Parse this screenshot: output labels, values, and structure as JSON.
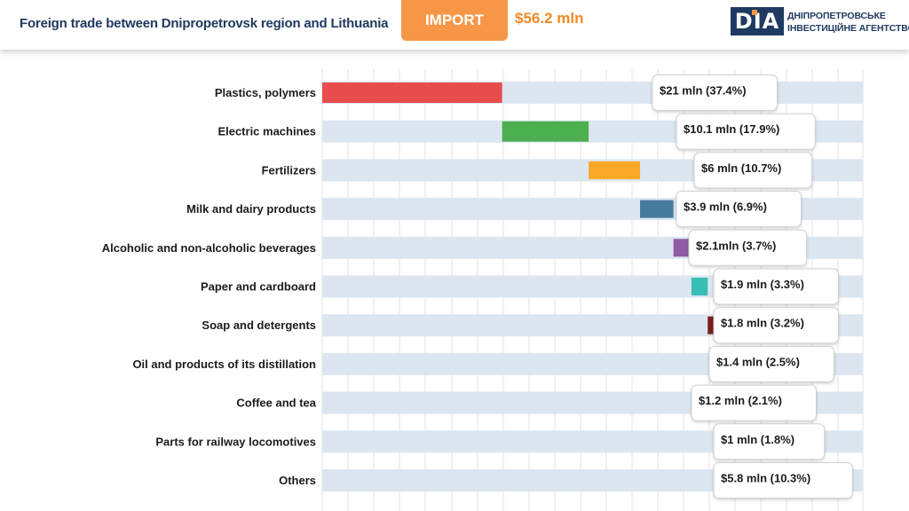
{
  "header": {
    "title": "Foreign trade between Dnipropetrovsk region and Lithuania",
    "tab_label": "IMPORT",
    "total": "$56.2 mln",
    "logo_mark": "DIA",
    "logo_line1": "ДНІПРОПЕТРОВСЬКЕ",
    "logo_line2": "ІНВЕСТИЦІЙНЕ АГЕНТСТВО"
  },
  "colors": {
    "accent_orange": "#f79646",
    "title_navy": "#1f3a60",
    "track": "#dce6f1"
  },
  "chart_data": {
    "type": "bar",
    "orientation": "horizontal",
    "style": "waterfall",
    "title": "",
    "xlabel": "",
    "ylabel": "",
    "unit": "$ mln",
    "total": 56.2,
    "categories": [
      "Plastics, polymers",
      "Electric machines",
      "Fertilizers",
      "Milk and dairy products",
      "Alcoholic and non-alcoholic beverages",
      "Paper and cardboard",
      "Soap and detergents",
      "Oil and products of its distillation",
      "Coffee and tea",
      "Parts for railway locomotives",
      "Others"
    ],
    "values": [
      21,
      10.1,
      6,
      3.9,
      2.1,
      1.9,
      1.8,
      1.4,
      1.2,
      1,
      5.8
    ],
    "shares_percent": [
      37.4,
      17.9,
      10.7,
      6.9,
      3.7,
      3.3,
      3.2,
      2.5,
      2.1,
      1.8,
      10.3
    ],
    "data_labels": [
      "$21 mln (37.4%)",
      "$10.1 mln (17.9%)",
      "$6 mln (10.7%)",
      "$3.9 mln (6.9%)",
      "$2.1mln (3.7%)",
      "$1.9 mln (3.3%)",
      "$1.8 mln (3.2%)",
      "$1.4 mln (2.5%)",
      "$1.2 mln (2.1%)",
      "$1 mln (1.8%)",
      "$5.8 mln  (10.3%)"
    ],
    "bar_colors": [
      "#e84c4c",
      "#4caf50",
      "#f9a825",
      "#457b9d",
      "#8e5ba6",
      "#36bfb5",
      "#7b1f1f",
      "#c05bb5",
      "#e07b45",
      "#2779c1",
      "#6e6e6e"
    ],
    "legend": "none",
    "grid": true
  }
}
